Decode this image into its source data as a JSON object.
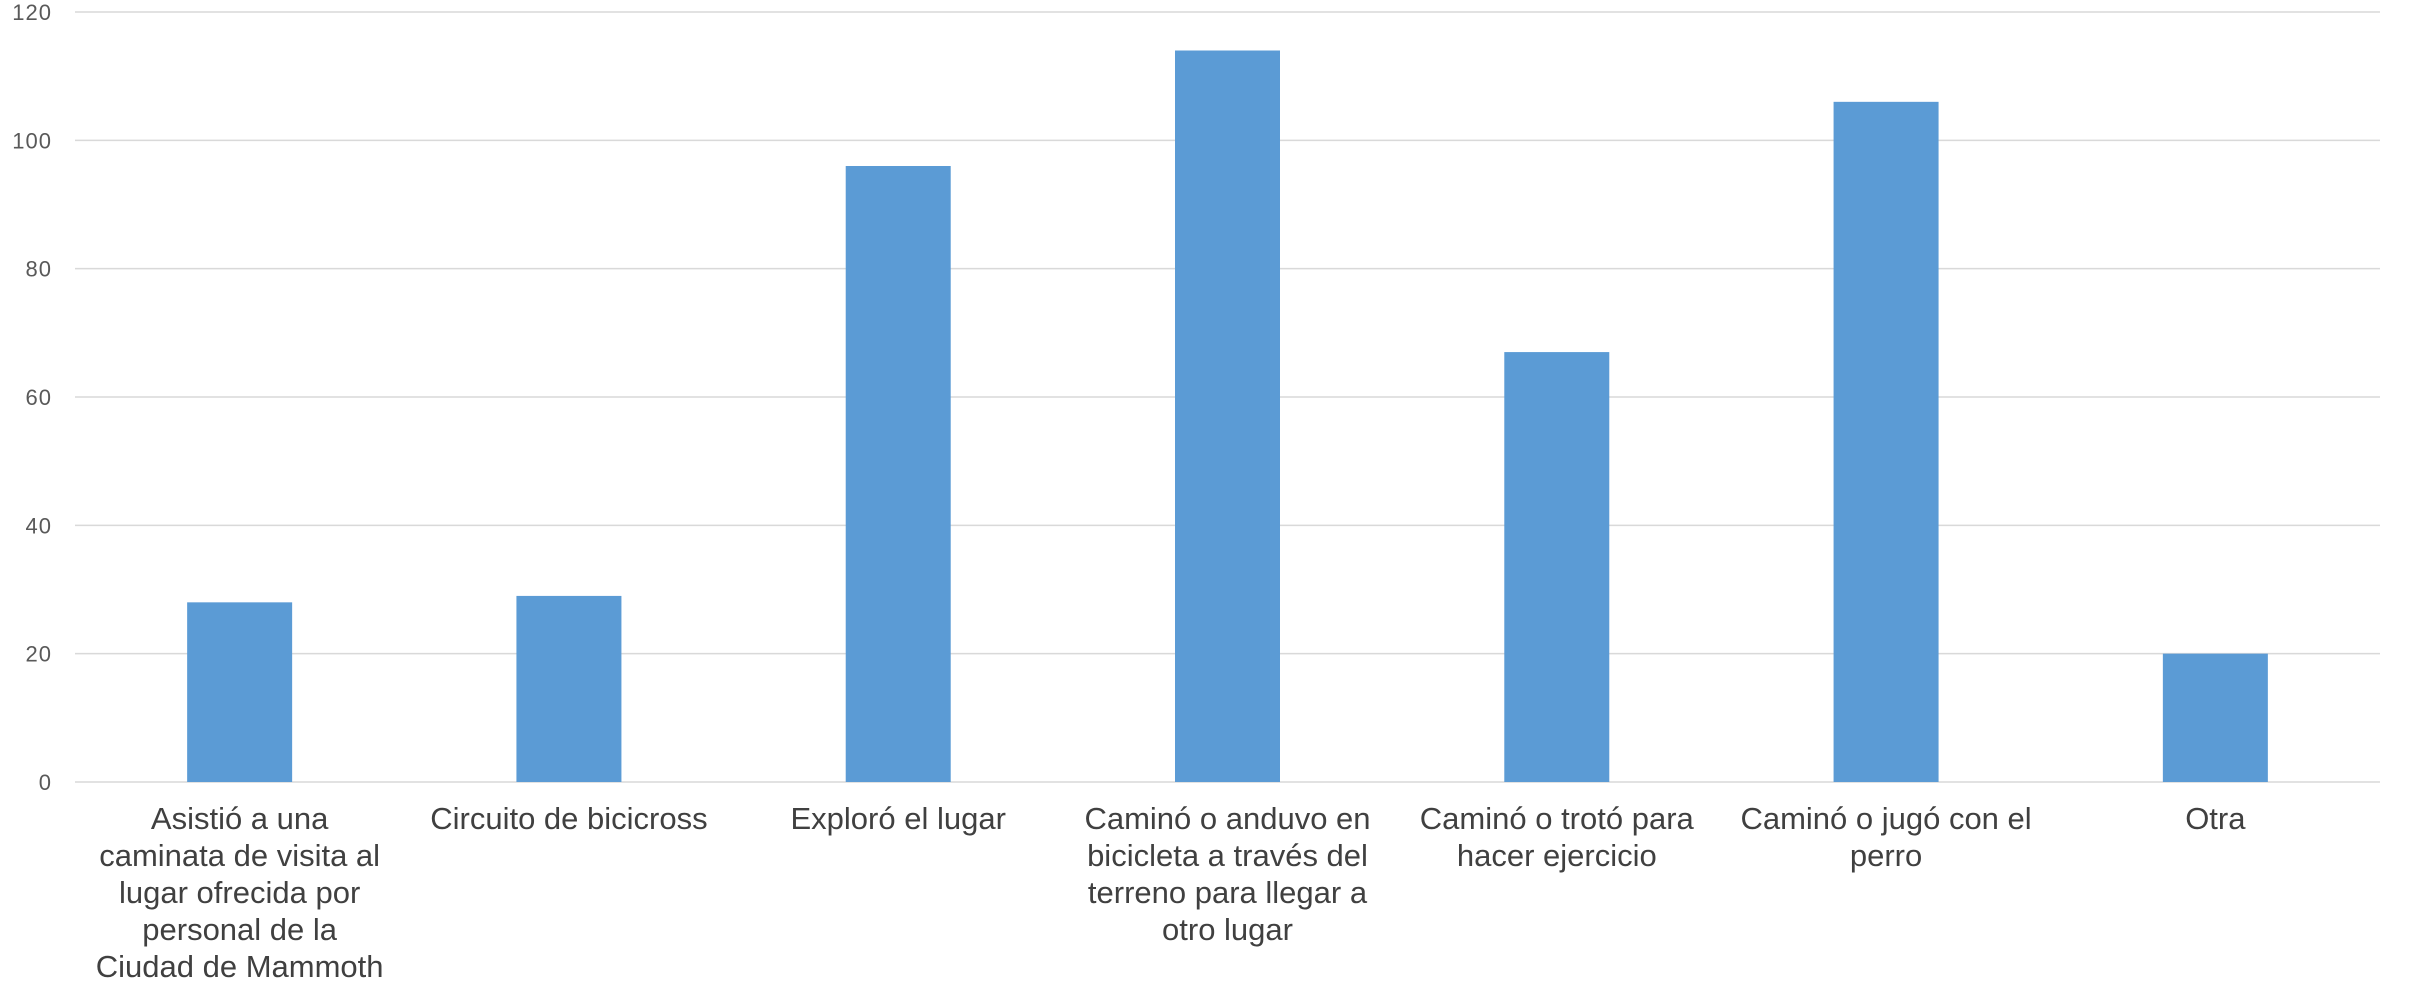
{
  "chart_data": {
    "type": "bar",
    "title": "",
    "xlabel": "",
    "ylabel": "",
    "categories": [
      "Asistió a una caminata de visita al lugar ofrecida por personal de la Ciudad de Mammoth",
      "Circuito de bicicross",
      "Exploró el lugar",
      "Caminó o anduvo en bicicleta a través del terreno para llegar a otro lugar",
      "Caminó o trotó para hacer ejercicio",
      "Caminó o jugó con el perro",
      "Otra"
    ],
    "values": [
      28,
      29,
      96,
      114,
      67,
      106,
      20
    ],
    "ylim": [
      0,
      120
    ],
    "yticks": [
      0,
      20,
      40,
      60,
      80,
      100,
      120
    ],
    "grid": true,
    "legend": "none",
    "bar_color": "#5b9bd5",
    "grid_color": "#d9d9d9"
  }
}
